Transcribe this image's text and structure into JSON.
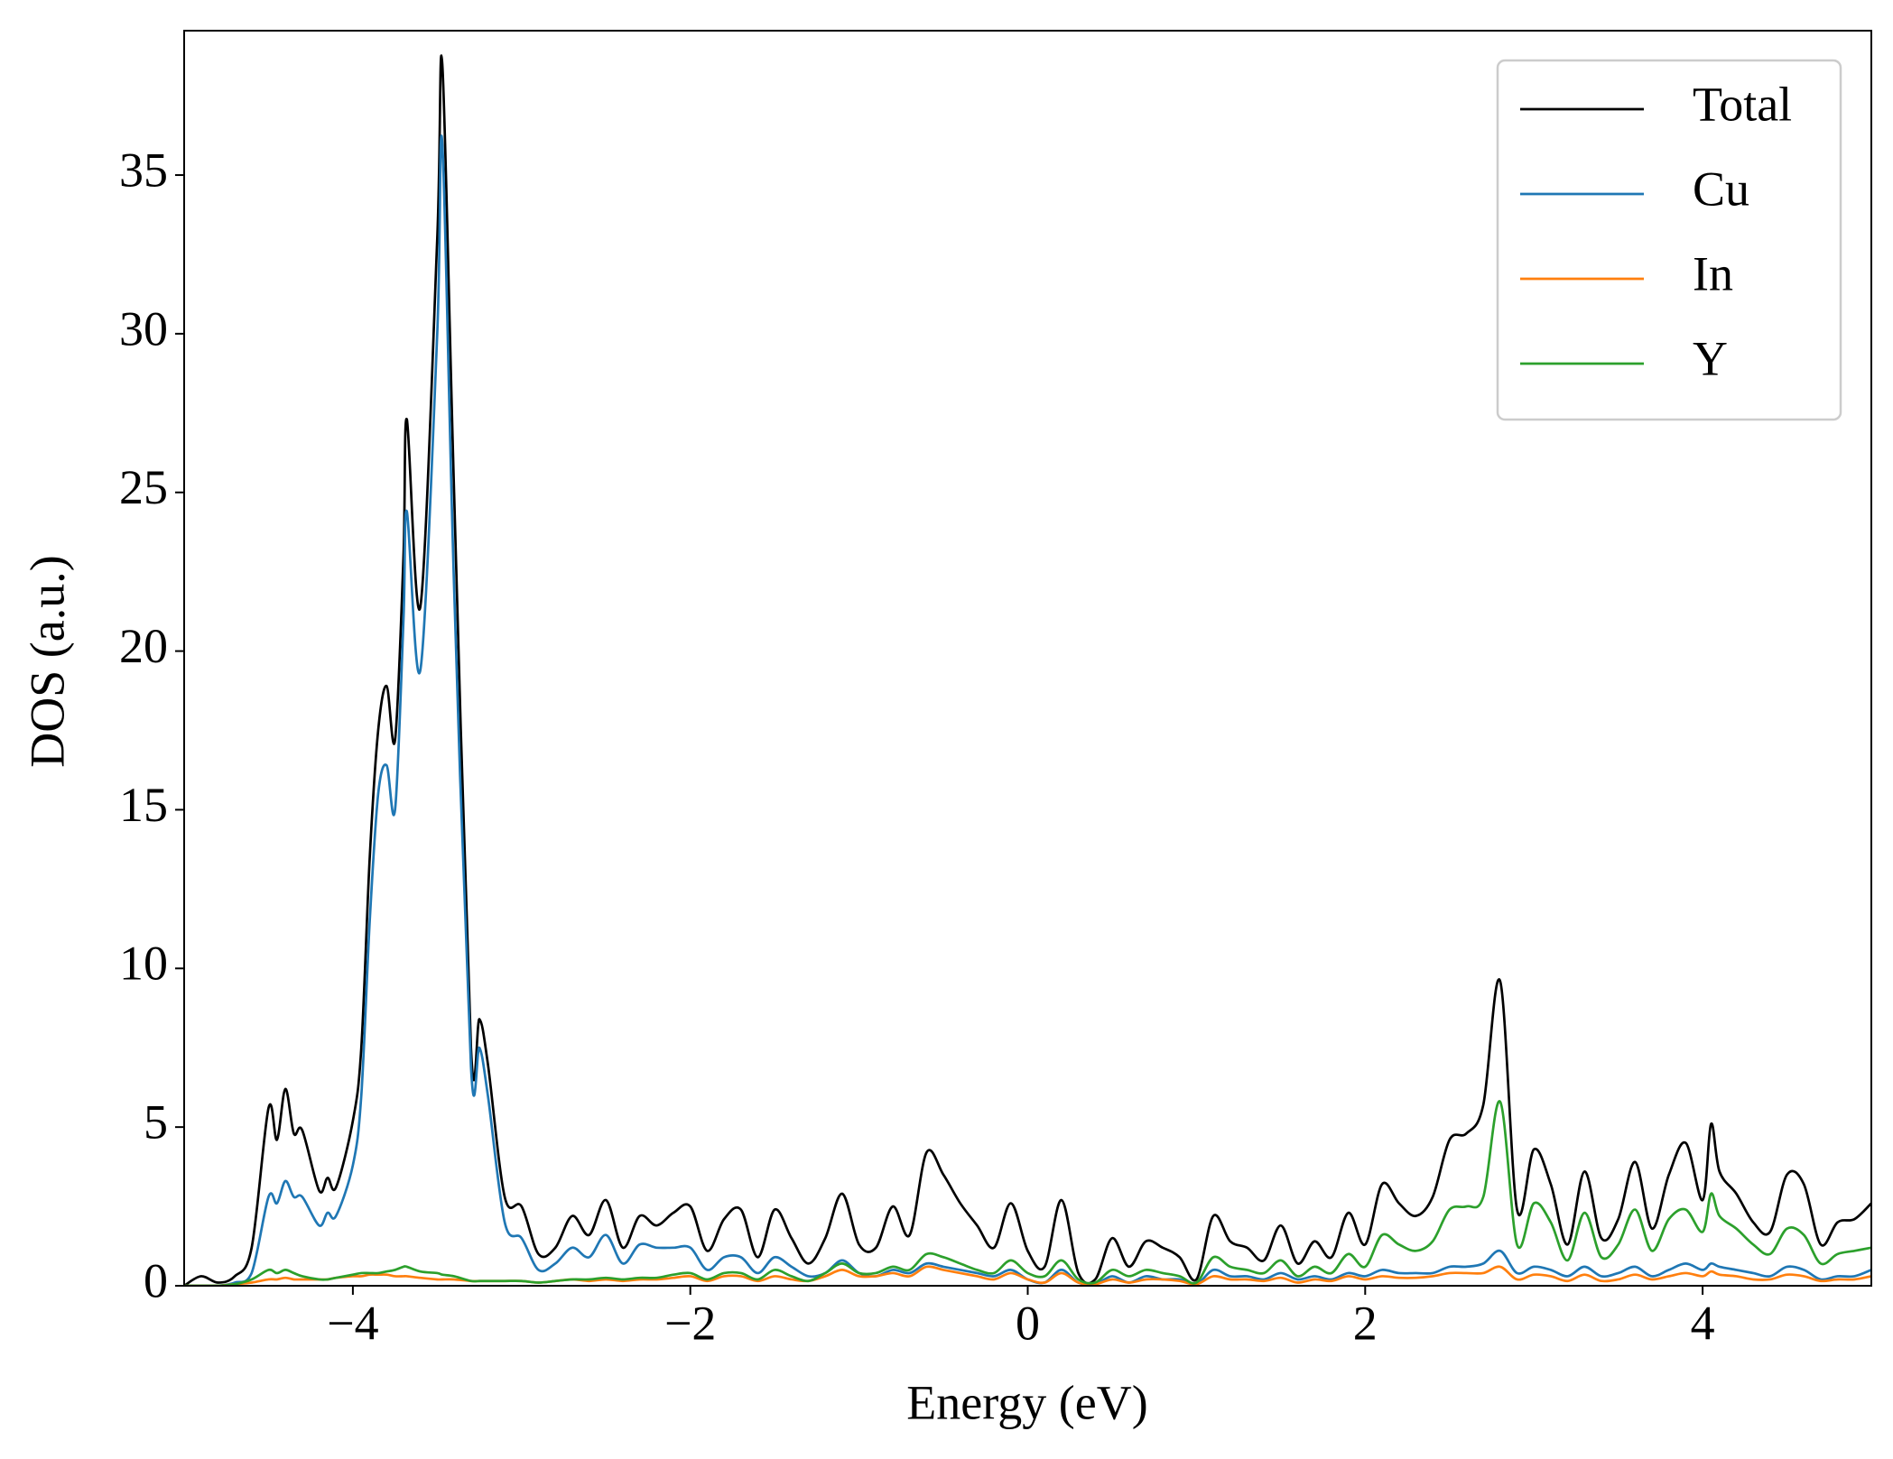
{
  "chart_data": {
    "type": "line",
    "xlabel": "Energy (eV)",
    "ylabel": "DOS (a.u.)",
    "x": [
      -5,
      -4.9,
      -4.8,
      -4.7,
      -4.6,
      -4.5,
      -4.45,
      -4.4,
      -4.35,
      -4.3,
      -4.2,
      -4.15,
      -4.1,
      -4.0,
      -3.95,
      -3.9,
      -3.85,
      -3.8,
      -3.75,
      -3.7,
      -3.68,
      -3.6,
      -3.5,
      -3.47,
      -3.4,
      -3.3,
      -3.25,
      -3.2,
      -3.1,
      -3.0,
      -2.9,
      -2.8,
      -2.7,
      -2.6,
      -2.5,
      -2.4,
      -2.3,
      -2.2,
      -2.1,
      -2.0,
      -1.9,
      -1.8,
      -1.7,
      -1.6,
      -1.5,
      -1.4,
      -1.3,
      -1.2,
      -1.1,
      -1.0,
      -0.9,
      -0.8,
      -0.7,
      -0.6,
      -0.5,
      -0.4,
      -0.3,
      -0.2,
      -0.1,
      0,
      0.1,
      0.2,
      0.3,
      0.4,
      0.5,
      0.6,
      0.7,
      0.8,
      0.9,
      1.0,
      1.1,
      1.2,
      1.3,
      1.4,
      1.5,
      1.6,
      1.7,
      1.8,
      1.9,
      2.0,
      2.1,
      2.2,
      2.3,
      2.4,
      2.5,
      2.6,
      2.7,
      2.8,
      2.9,
      3.0,
      3.1,
      3.2,
      3.3,
      3.4,
      3.5,
      3.6,
      3.7,
      3.8,
      3.9,
      4.0,
      4.05,
      4.1,
      4.2,
      4.3,
      4.4,
      4.5,
      4.6,
      4.7,
      4.8,
      4.9,
      5.0
    ],
    "series": [
      {
        "name": "Total",
        "color": "#000000",
        "values": [
          0,
          0.3,
          0.1,
          0.3,
          1.2,
          5.6,
          4.6,
          6.2,
          4.8,
          4.9,
          3,
          3.4,
          3.1,
          5.2,
          7.5,
          13.5,
          17.5,
          18.9,
          17.2,
          23,
          27.3,
          21.4,
          33,
          38.5,
          25,
          7.5,
          8.4,
          7,
          2.8,
          2.5,
          1,
          1.2,
          2.2,
          1.6,
          2.7,
          1.2,
          2.2,
          1.9,
          2.3,
          2.5,
          1.1,
          2.1,
          2.4,
          0.9,
          2.4,
          1.5,
          0.7,
          1.5,
          2.9,
          1.3,
          1.2,
          2.5,
          1.6,
          4.2,
          3.5,
          2.6,
          1.9,
          1.2,
          2.6,
          1.1,
          0.6,
          2.7,
          0.4,
          0.2,
          1.5,
          0.6,
          1.4,
          1.2,
          0.9,
          0.2,
          2.2,
          1.4,
          1.2,
          0.8,
          1.9,
          0.7,
          1.4,
          0.9,
          2.3,
          1.3,
          3.2,
          2.6,
          2.2,
          2.8,
          4.6,
          4.8,
          5.7,
          9.6,
          2.4,
          4.3,
          3.2,
          1.3,
          3.6,
          1.5,
          2.1,
          3.9,
          1.8,
          3.5,
          4.5,
          2.7,
          5.1,
          3.6,
          2.9,
          2.0,
          1.7,
          3.5,
          3.2,
          1.3,
          2.0,
          2.1,
          2.6
        ]
      },
      {
        "name": "Cu",
        "color": "#1f77b4",
        "values": [
          0,
          0,
          0,
          0.1,
          0.4,
          2.8,
          2.6,
          3.3,
          2.8,
          2.8,
          1.9,
          2.3,
          2.2,
          3.8,
          6,
          11.5,
          15.5,
          16.4,
          15,
          21,
          24.4,
          19.4,
          30,
          36,
          22,
          6.9,
          7.5,
          6,
          2,
          1.5,
          0.5,
          0.7,
          1.2,
          0.9,
          1.6,
          0.7,
          1.3,
          1.2,
          1.2,
          1.2,
          0.5,
          0.9,
          0.9,
          0.4,
          0.9,
          0.6,
          0.3,
          0.4,
          0.8,
          0.4,
          0.3,
          0.5,
          0.4,
          0.7,
          0.6,
          0.5,
          0.4,
          0.3,
          0.5,
          0.2,
          0.1,
          0.5,
          0.1,
          0.05,
          0.3,
          0.1,
          0.3,
          0.2,
          0.2,
          0.05,
          0.5,
          0.3,
          0.3,
          0.2,
          0.4,
          0.2,
          0.3,
          0.2,
          0.4,
          0.3,
          0.5,
          0.4,
          0.4,
          0.4,
          0.6,
          0.6,
          0.7,
          1.1,
          0.4,
          0.6,
          0.5,
          0.3,
          0.6,
          0.3,
          0.4,
          0.6,
          0.3,
          0.5,
          0.7,
          0.5,
          0.7,
          0.6,
          0.5,
          0.4,
          0.3,
          0.6,
          0.5,
          0.2,
          0.3,
          0.3,
          0.5
        ]
      },
      {
        "name": "In",
        "color": "#ff7f0e",
        "values": [
          0,
          0,
          0,
          0.05,
          0.1,
          0.2,
          0.2,
          0.25,
          0.2,
          0.2,
          0.2,
          0.2,
          0.25,
          0.3,
          0.3,
          0.35,
          0.35,
          0.35,
          0.3,
          0.3,
          0.3,
          0.25,
          0.2,
          0.2,
          0.2,
          0.15,
          0.15,
          0.15,
          0.15,
          0.15,
          0.1,
          0.15,
          0.2,
          0.15,
          0.2,
          0.15,
          0.2,
          0.2,
          0.25,
          0.3,
          0.15,
          0.3,
          0.3,
          0.15,
          0.3,
          0.2,
          0.15,
          0.3,
          0.5,
          0.3,
          0.3,
          0.4,
          0.3,
          0.6,
          0.5,
          0.4,
          0.3,
          0.2,
          0.4,
          0.2,
          0.1,
          0.4,
          0.1,
          0.05,
          0.2,
          0.1,
          0.2,
          0.2,
          0.15,
          0.05,
          0.3,
          0.2,
          0.2,
          0.15,
          0.25,
          0.1,
          0.2,
          0.15,
          0.3,
          0.2,
          0.3,
          0.25,
          0.25,
          0.3,
          0.4,
          0.4,
          0.4,
          0.6,
          0.2,
          0.35,
          0.3,
          0.15,
          0.35,
          0.15,
          0.2,
          0.35,
          0.2,
          0.3,
          0.4,
          0.3,
          0.45,
          0.35,
          0.3,
          0.2,
          0.2,
          0.35,
          0.3,
          0.15,
          0.2,
          0.2,
          0.3
        ]
      },
      {
        "name": "Y",
        "color": "#2ca02c",
        "values": [
          0,
          0,
          0,
          0.05,
          0.2,
          0.5,
          0.4,
          0.5,
          0.4,
          0.3,
          0.2,
          0.2,
          0.25,
          0.35,
          0.4,
          0.4,
          0.4,
          0.45,
          0.5,
          0.6,
          0.6,
          0.45,
          0.4,
          0.35,
          0.3,
          0.15,
          0.15,
          0.15,
          0.15,
          0.15,
          0.1,
          0.15,
          0.2,
          0.2,
          0.25,
          0.2,
          0.25,
          0.25,
          0.35,
          0.4,
          0.2,
          0.4,
          0.4,
          0.2,
          0.5,
          0.3,
          0.15,
          0.4,
          0.7,
          0.4,
          0.4,
          0.6,
          0.5,
          1.0,
          0.9,
          0.7,
          0.5,
          0.4,
          0.8,
          0.4,
          0.3,
          0.8,
          0.2,
          0.1,
          0.5,
          0.3,
          0.5,
          0.4,
          0.3,
          0.1,
          0.9,
          0.6,
          0.5,
          0.4,
          0.8,
          0.3,
          0.6,
          0.4,
          1.0,
          0.6,
          1.6,
          1.3,
          1.1,
          1.4,
          2.4,
          2.5,
          2.8,
          5.8,
          1.3,
          2.6,
          2.0,
          0.8,
          2.3,
          0.9,
          1.3,
          2.4,
          1.1,
          2.1,
          2.4,
          1.7,
          2.9,
          2.2,
          1.8,
          1.3,
          1.0,
          1.8,
          1.6,
          0.7,
          1.0,
          1.1,
          1.2
        ]
      }
    ],
    "xlim": [
      -5,
      5
    ],
    "xticks": [
      {
        "value": -4,
        "label": "−4"
      },
      {
        "value": -2,
        "label": "−2"
      },
      0,
      2,
      4
    ],
    "ylim": [
      0,
      39.55
    ],
    "yticks": [
      0,
      5,
      10,
      15,
      20,
      25,
      30,
      35
    ],
    "legend": "upper right",
    "grid": false
  }
}
